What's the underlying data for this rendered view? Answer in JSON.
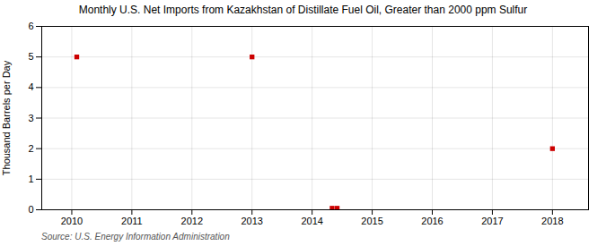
{
  "chart_data": {
    "type": "scatter",
    "title": "Monthly U.S. Net Imports from Kazakhstan of Distillate Fuel Oil, Greater than 2000 ppm Sulfur",
    "y_label": "Thousand Barrels per Day",
    "source": "Source: U.S. Energy Information Administration",
    "x": [
      2010.083,
      2013.0,
      2014.333,
      2014.417,
      2018.0
    ],
    "values": [
      5.0,
      5.0,
      0.05,
      0.05,
      2.0
    ],
    "color": "#CC0000",
    "marker": "square",
    "xlim": [
      2009.5,
      2018.6
    ],
    "xticks": [
      2010,
      2011,
      2012,
      2013,
      2014,
      2015,
      2016,
      2017,
      2018
    ],
    "ylim": [
      0,
      6
    ],
    "yticks": [
      0,
      1,
      2,
      3,
      4,
      5,
      6
    ],
    "grid": true
  }
}
